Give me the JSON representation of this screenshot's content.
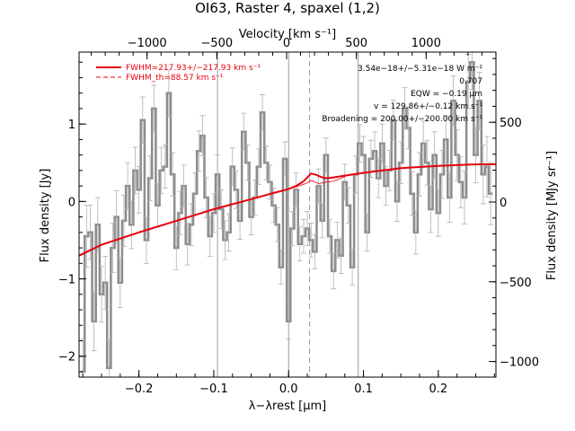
{
  "chart_data": {
    "type": "line",
    "title": "OI63, Raster 4, spaxel (1,2)",
    "xlabel": "λ−λrest [μm]",
    "ylabel": "Flux density [Jy]",
    "top_xlabel": "Velocity [km s⁻¹]",
    "right_ylabel": "Flux density [MJy sr⁻¹]",
    "xlim": [
      -0.28,
      0.277
    ],
    "ylim": [
      -2.27,
      1.93
    ],
    "x_ticks": [
      -0.2,
      -0.1,
      0.0,
      0.1,
      0.2
    ],
    "x_tick_labels": [
      "−0.2",
      "−0.1",
      "0.0",
      "0.1",
      "0.2"
    ],
    "y_ticks": [
      -2,
      -1,
      0,
      1
    ],
    "y_tick_labels": [
      "−2",
      "−1",
      "0",
      "1"
    ],
    "top_ticks": [
      -1000,
      -500,
      0,
      500,
      1000
    ],
    "top_tick_labels": [
      "−1000",
      "−500",
      "0",
      "500",
      "1000"
    ],
    "right_ticks": [
      -1000,
      -500,
      0,
      500
    ],
    "right_tick_labels": [
      "−1000",
      "−500",
      "0",
      "500"
    ],
    "grid_lines_x": [
      -0.095,
      0.0,
      0.093
    ],
    "rest_line_x": 0.028,
    "legend": [
      {
        "label": "FWHM=217.93+/−217.93 km s⁻¹",
        "style": "solid",
        "color": "#e8000b"
      },
      {
        "label": "FWHM_th=88.57 km s⁻¹",
        "style": "dashed",
        "color": "#e8000b"
      }
    ],
    "annotations": [
      "3.54e−18+/−5.31e−18 W m⁻²",
      "0.707",
      "EQW = −0.19 μm",
      "v = 129.86+/−0.12 km s⁻¹",
      "Broadening = 200.00+/−200.00 km s⁻¹"
    ],
    "series": [
      {
        "type": "step_errorbar",
        "color": "#8c8c8c",
        "x": [
          -0.275,
          -0.27,
          -0.265,
          -0.26,
          -0.255,
          -0.25,
          -0.245,
          -0.24,
          -0.235,
          -0.23,
          -0.225,
          -0.22,
          -0.215,
          -0.21,
          -0.205,
          -0.2,
          -0.195,
          -0.19,
          -0.185,
          -0.18,
          -0.175,
          -0.17,
          -0.165,
          -0.16,
          -0.155,
          -0.15,
          -0.145,
          -0.14,
          -0.135,
          -0.13,
          -0.125,
          -0.12,
          -0.115,
          -0.11,
          -0.105,
          -0.1,
          -0.095,
          -0.09,
          -0.085,
          -0.08,
          -0.075,
          -0.07,
          -0.065,
          -0.06,
          -0.055,
          -0.05,
          -0.045,
          -0.04,
          -0.035,
          -0.03,
          -0.025,
          -0.02,
          -0.015,
          -0.01,
          -0.005,
          0.0,
          0.005,
          0.01,
          0.015,
          0.02,
          0.025,
          0.03,
          0.035,
          0.04,
          0.045,
          0.05,
          0.055,
          0.06,
          0.065,
          0.07,
          0.075,
          0.08,
          0.085,
          0.09,
          0.095,
          0.1,
          0.105,
          0.11,
          0.115,
          0.12,
          0.125,
          0.13,
          0.135,
          0.14,
          0.145,
          0.15,
          0.155,
          0.16,
          0.165,
          0.17,
          0.175,
          0.18,
          0.185,
          0.19,
          0.195,
          0.2,
          0.205,
          0.21,
          0.215,
          0.22,
          0.225,
          0.23,
          0.235,
          0.24,
          0.245,
          0.25,
          0.255,
          0.26,
          0.265,
          0.27
        ],
        "y": [
          -2.2,
          -0.45,
          -0.4,
          -1.55,
          -0.3,
          -1.2,
          -1.05,
          -2.15,
          -0.6,
          -0.2,
          -1.05,
          -0.25,
          0.2,
          -0.3,
          0.4,
          0.15,
          1.05,
          -0.5,
          0.3,
          1.2,
          -0.05,
          0.4,
          0.45,
          1.4,
          0.35,
          -0.6,
          -0.15,
          0.2,
          -0.55,
          -0.3,
          0.1,
          0.65,
          0.85,
          0.05,
          -0.45,
          -0.15,
          0.35,
          -0.1,
          -0.5,
          -0.4,
          0.45,
          0.15,
          -0.25,
          0.9,
          0.5,
          -0.2,
          0.05,
          0.45,
          1.15,
          0.5,
          0.25,
          -0.05,
          -0.3,
          -0.85,
          0.55,
          -1.55,
          -0.35,
          0.15,
          -0.55,
          -0.45,
          -0.35,
          -0.5,
          -0.65,
          0.2,
          -0.25,
          0.6,
          -0.45,
          -0.9,
          -0.5,
          -0.7,
          0.25,
          -0.05,
          -0.85,
          0.35,
          0.75,
          0.6,
          -0.4,
          0.55,
          0.65,
          0.3,
          0.75,
          0.2,
          0.4,
          1.05,
          0.0,
          0.5,
          1.2,
          0.95,
          0.1,
          -0.4,
          0.35,
          0.75,
          0.5,
          -0.1,
          0.6,
          -0.15,
          0.35,
          0.8,
          0.05,
          1.3,
          0.6,
          0.25,
          0.05,
          1.55,
          1.8,
          0.6,
          1.3,
          0.35,
          0.45,
          0.1
        ],
        "yerr": [
          0.42,
          0.4,
          0.35,
          0.38,
          0.35,
          0.36,
          0.34,
          0.36,
          0.32,
          0.34,
          0.32,
          0.33,
          0.3,
          0.31,
          0.3,
          0.3,
          0.3,
          0.3,
          0.29,
          0.3,
          0.28,
          0.3,
          0.28,
          0.3,
          0.28,
          0.28,
          0.28,
          0.27,
          0.27,
          0.27,
          0.27,
          0.26,
          0.26,
          0.26,
          0.26,
          0.25,
          0.25,
          0.25,
          0.25,
          0.24,
          0.24,
          0.24,
          0.24,
          0.24,
          0.23,
          0.23,
          0.23,
          0.23,
          0.23,
          0.22,
          0.22,
          0.22,
          0.22,
          0.22,
          0.22,
          0.23,
          0.22,
          0.22,
          0.22,
          0.22,
          0.22,
          0.22,
          0.22,
          0.22,
          0.22,
          0.22,
          0.22,
          0.23,
          0.23,
          0.23,
          0.23,
          0.23,
          0.23,
          0.24,
          0.24,
          0.24,
          0.24,
          0.24,
          0.25,
          0.25,
          0.25,
          0.25,
          0.26,
          0.26,
          0.26,
          0.27,
          0.27,
          0.27,
          0.28,
          0.28,
          0.28,
          0.29,
          0.29,
          0.3,
          0.3,
          0.3,
          0.31,
          0.31,
          0.32,
          0.32,
          0.33,
          0.33,
          0.34,
          0.35,
          0.35,
          0.36,
          0.37,
          0.38,
          0.39,
          0.4
        ]
      },
      {
        "type": "line",
        "style": "solid",
        "color": "#e8000b",
        "x": [
          -0.28,
          -0.25,
          -0.2,
          -0.15,
          -0.1,
          -0.05,
          -0.02,
          0.0,
          0.01,
          0.02,
          0.025,
          0.03,
          0.035,
          0.04,
          0.045,
          0.05,
          0.06,
          0.08,
          0.1,
          0.15,
          0.2,
          0.25,
          0.277
        ],
        "y": [
          -0.7,
          -0.56,
          -0.4,
          -0.25,
          -0.1,
          0.03,
          0.11,
          0.16,
          0.2,
          0.26,
          0.31,
          0.36,
          0.35,
          0.33,
          0.31,
          0.3,
          0.31,
          0.34,
          0.37,
          0.43,
          0.46,
          0.48,
          0.48
        ]
      },
      {
        "type": "line",
        "style": "thin",
        "color": "#e8000b",
        "x": [
          -0.02,
          0.0,
          0.01,
          0.02,
          0.025,
          0.03,
          0.035,
          0.04,
          0.05,
          0.06,
          0.08
        ],
        "y": [
          0.11,
          0.16,
          0.19,
          0.22,
          0.24,
          0.27,
          0.25,
          0.23,
          0.25,
          0.26,
          0.34
        ]
      }
    ]
  }
}
